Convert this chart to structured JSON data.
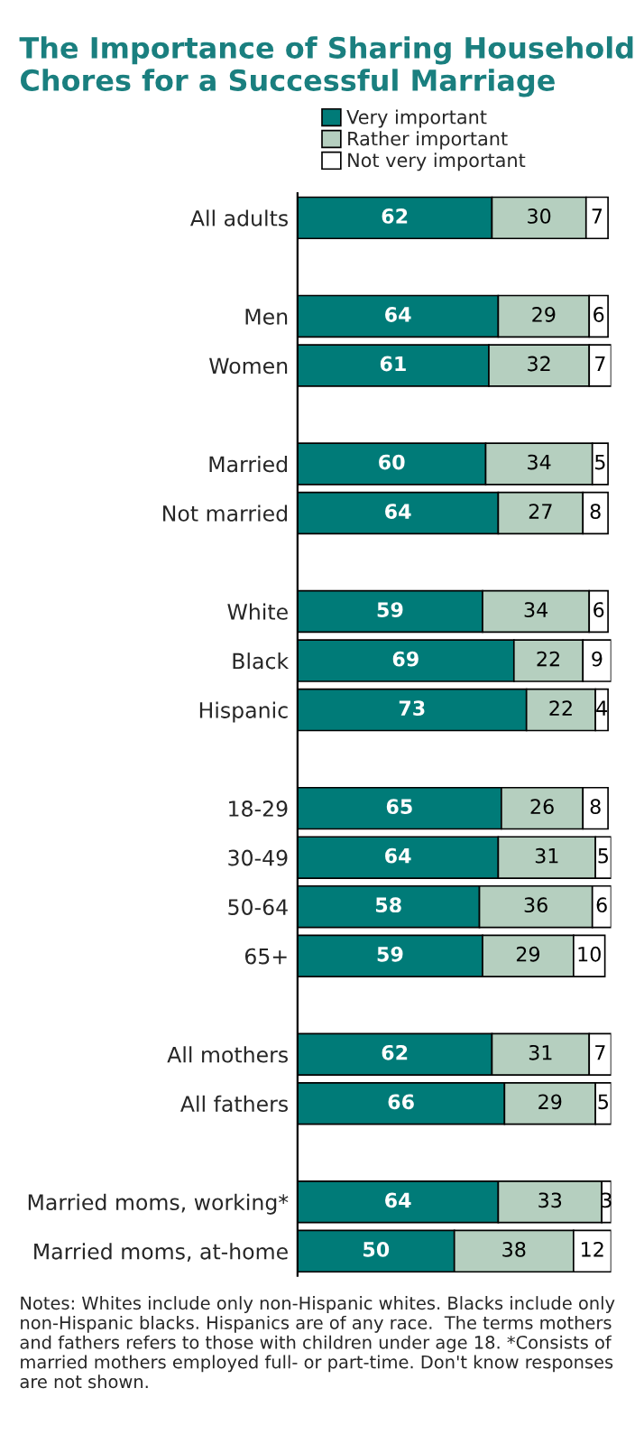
{
  "chart_data": {
    "type": "bar",
    "orientation": "horizontal",
    "stacked": true,
    "data_labels": true,
    "legend": "top",
    "grid": false,
    "title": "The Importance of Sharing Household Chores for a Successful Marriage",
    "categories": [
      "All adults",
      null,
      "Men",
      "Women",
      null,
      "Married",
      "Not married",
      null,
      "White",
      "Black",
      "Hispanic",
      null,
      "18-29",
      "30-49",
      "50-64",
      "65+",
      null,
      "All mothers",
      "All fathers",
      null,
      "Married moms, working*",
      "Married moms, at-home"
    ],
    "series": [
      {
        "name": "Very important",
        "color": "#007b78",
        "values": [
          62,
          null,
          64,
          61,
          null,
          60,
          64,
          null,
          59,
          69,
          73,
          null,
          65,
          64,
          58,
          59,
          null,
          62,
          66,
          null,
          64,
          50
        ]
      },
      {
        "name": "Rather important",
        "color": "#b5cfbf",
        "values": [
          30,
          null,
          29,
          32,
          null,
          34,
          27,
          null,
          34,
          22,
          22,
          null,
          26,
          31,
          36,
          29,
          null,
          31,
          29,
          null,
          33,
          38
        ]
      },
      {
        "name": "Not very important",
        "color": "#ffffff",
        "values": [
          7,
          null,
          6,
          7,
          null,
          5,
          8,
          null,
          6,
          9,
          4,
          null,
          8,
          5,
          6,
          10,
          null,
          7,
          5,
          null,
          3,
          12
        ]
      }
    ],
    "annotations": [
      "Notes: Whites include only non-Hispanic whites. Blacks include only non-Hispanic blacks. Hispanics are of any race.  The terms mothers and fathers refers to those with children under age 18. *Consists of married mothers employed full- or part-time. Don't know responses are not shown."
    ]
  }
}
